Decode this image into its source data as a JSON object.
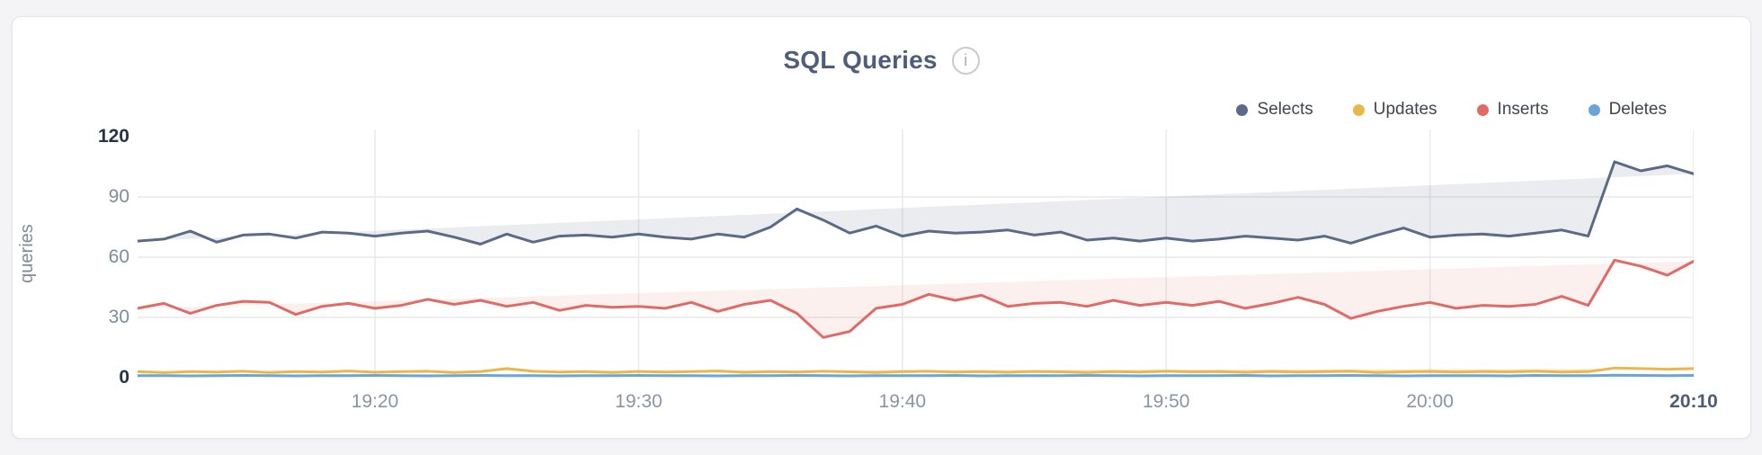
{
  "page": {
    "background": "#f4f4f6",
    "card_background": "#ffffff",
    "card_border": "#e4e6ea"
  },
  "header": {
    "title": "SQL Queries",
    "info_icon_glyph": "i"
  },
  "legend": {
    "position": "top-right",
    "items": [
      {
        "label": "Selects",
        "color": "#5b6b87"
      },
      {
        "label": "Updates",
        "color": "#e9b84c"
      },
      {
        "label": "Inserts",
        "color": "#e06b66"
      },
      {
        "label": "Deletes",
        "color": "#6aa4d8"
      }
    ]
  },
  "chart_data": {
    "type": "area",
    "title": "SQL Queries",
    "xlabel": "",
    "ylabel": "queries",
    "ylim": [
      0,
      120
    ],
    "grid": true,
    "legend_position": "top-right",
    "x": [
      "19:11",
      "19:12",
      "19:13",
      "19:14",
      "19:15",
      "19:16",
      "19:17",
      "19:18",
      "19:19",
      "19:20",
      "19:21",
      "19:22",
      "19:23",
      "19:24",
      "19:25",
      "19:26",
      "19:27",
      "19:28",
      "19:29",
      "19:30",
      "19:31",
      "19:32",
      "19:33",
      "19:34",
      "19:35",
      "19:36",
      "19:37",
      "19:38",
      "19:39",
      "19:40",
      "19:41",
      "19:42",
      "19:43",
      "19:44",
      "19:45",
      "19:46",
      "19:47",
      "19:48",
      "19:49",
      "19:50",
      "19:51",
      "19:52",
      "19:53",
      "19:54",
      "19:55",
      "19:56",
      "19:57",
      "19:58",
      "19:59",
      "20:00",
      "20:01",
      "20:02",
      "20:03",
      "20:04",
      "20:05",
      "20:06",
      "20:07",
      "20:08",
      "20:09",
      "20:10"
    ],
    "x_ticks": [
      {
        "label": "19:20",
        "index": 9,
        "strong": false
      },
      {
        "label": "19:30",
        "index": 19,
        "strong": false
      },
      {
        "label": "19:40",
        "index": 29,
        "strong": false
      },
      {
        "label": "19:50",
        "index": 39,
        "strong": false
      },
      {
        "label": "20:00",
        "index": 49,
        "strong": false
      },
      {
        "label": "20:10",
        "index": 59,
        "strong": true
      }
    ],
    "y_ticks": [
      {
        "label": "0",
        "value": 0,
        "strong": true
      },
      {
        "label": "30",
        "value": 30,
        "strong": false
      },
      {
        "label": "60",
        "value": 60,
        "strong": false
      },
      {
        "label": "90",
        "value": 90,
        "strong": false
      },
      {
        "label": "120",
        "value": 120,
        "strong": true
      }
    ],
    "series": [
      {
        "name": "Selects",
        "color": "#5b6b87",
        "fill_opacity": 0.13,
        "values": [
          68,
          69,
          73,
          67.5,
          71,
          71.5,
          69.5,
          72.5,
          72,
          70.5,
          72,
          73,
          70,
          66.5,
          71.5,
          67.5,
          70.5,
          71,
          70,
          71.5,
          70,
          69,
          71.5,
          70,
          75,
          84,
          78.5,
          72,
          75.5,
          70.5,
          73,
          72,
          72.5,
          73.5,
          71,
          72.5,
          68.5,
          69.5,
          68,
          69.5,
          68,
          69,
          70.5,
          69.5,
          68.5,
          70.5,
          67,
          71,
          74.5,
          70,
          71,
          71.5,
          70.5,
          72,
          73.5,
          70.5,
          107.5,
          103,
          105.5,
          101.5
        ]
      },
      {
        "name": "Inserts",
        "color": "#e06b66",
        "fill_opacity": 0.1,
        "values": [
          34.5,
          37,
          32,
          36,
          38,
          37.5,
          31.5,
          35.5,
          37,
          34.5,
          36,
          39,
          36.5,
          38.5,
          35.5,
          37.5,
          33.5,
          36,
          35,
          35.5,
          34.5,
          37.5,
          33,
          36.5,
          38.5,
          32,
          20,
          23,
          34.5,
          36.5,
          41.5,
          38.5,
          41,
          35.5,
          37,
          37.5,
          35.5,
          38.5,
          36,
          37.5,
          36,
          38,
          34.5,
          37,
          40,
          36.5,
          29.5,
          33,
          35.5,
          37.5,
          34.5,
          36,
          35.5,
          36.5,
          40.5,
          36,
          58.5,
          55.5,
          51,
          58
        ]
      },
      {
        "name": "Updates",
        "color": "#e9b84c",
        "fill_opacity": 0.28,
        "values": [
          3,
          2.5,
          3,
          2.8,
          3.2,
          2.6,
          3,
          2.8,
          3.3,
          2.7,
          3,
          3.2,
          2.6,
          3,
          4.5,
          3.2,
          2.8,
          3,
          2.6,
          3.1,
          2.8,
          3,
          3.3,
          2.7,
          3,
          2.8,
          3.2,
          2.9,
          2.6,
          3,
          3.2,
          2.8,
          3,
          2.7,
          3.1,
          2.9,
          2.6,
          3,
          2.8,
          3.2,
          2.9,
          3,
          2.7,
          3.1,
          2.8,
          3,
          3.2,
          2.6,
          2.9,
          3.1,
          2.8,
          3,
          2.9,
          3.2,
          2.8,
          3,
          4.8,
          4.5,
          4.2,
          4.5
        ]
      },
      {
        "name": "Deletes",
        "color": "#6aa4d8",
        "fill_opacity": 0.3,
        "values": [
          1,
          1,
          0.9,
          1,
          1.1,
          1,
          0.9,
          1,
          1,
          1.1,
          1,
          0.9,
          1,
          1.1,
          1,
          1,
          0.9,
          1,
          1,
          1.1,
          1,
          1,
          0.9,
          1,
          1,
          1.1,
          1,
          0.9,
          1,
          1,
          1,
          1.1,
          0.9,
          1,
          1,
          1,
          1.1,
          1,
          0.9,
          1,
          1,
          1,
          1.1,
          0.9,
          1,
          1,
          1.1,
          1,
          0.9,
          1,
          1,
          1,
          0.9,
          1.1,
          1,
          1,
          1.2,
          1.1,
          1,
          1.1
        ]
      }
    ]
  },
  "style": {
    "gridline_color": "#e8e9ec",
    "tick_color": "#8a94a7",
    "tick_strong_color": "#273349"
  }
}
